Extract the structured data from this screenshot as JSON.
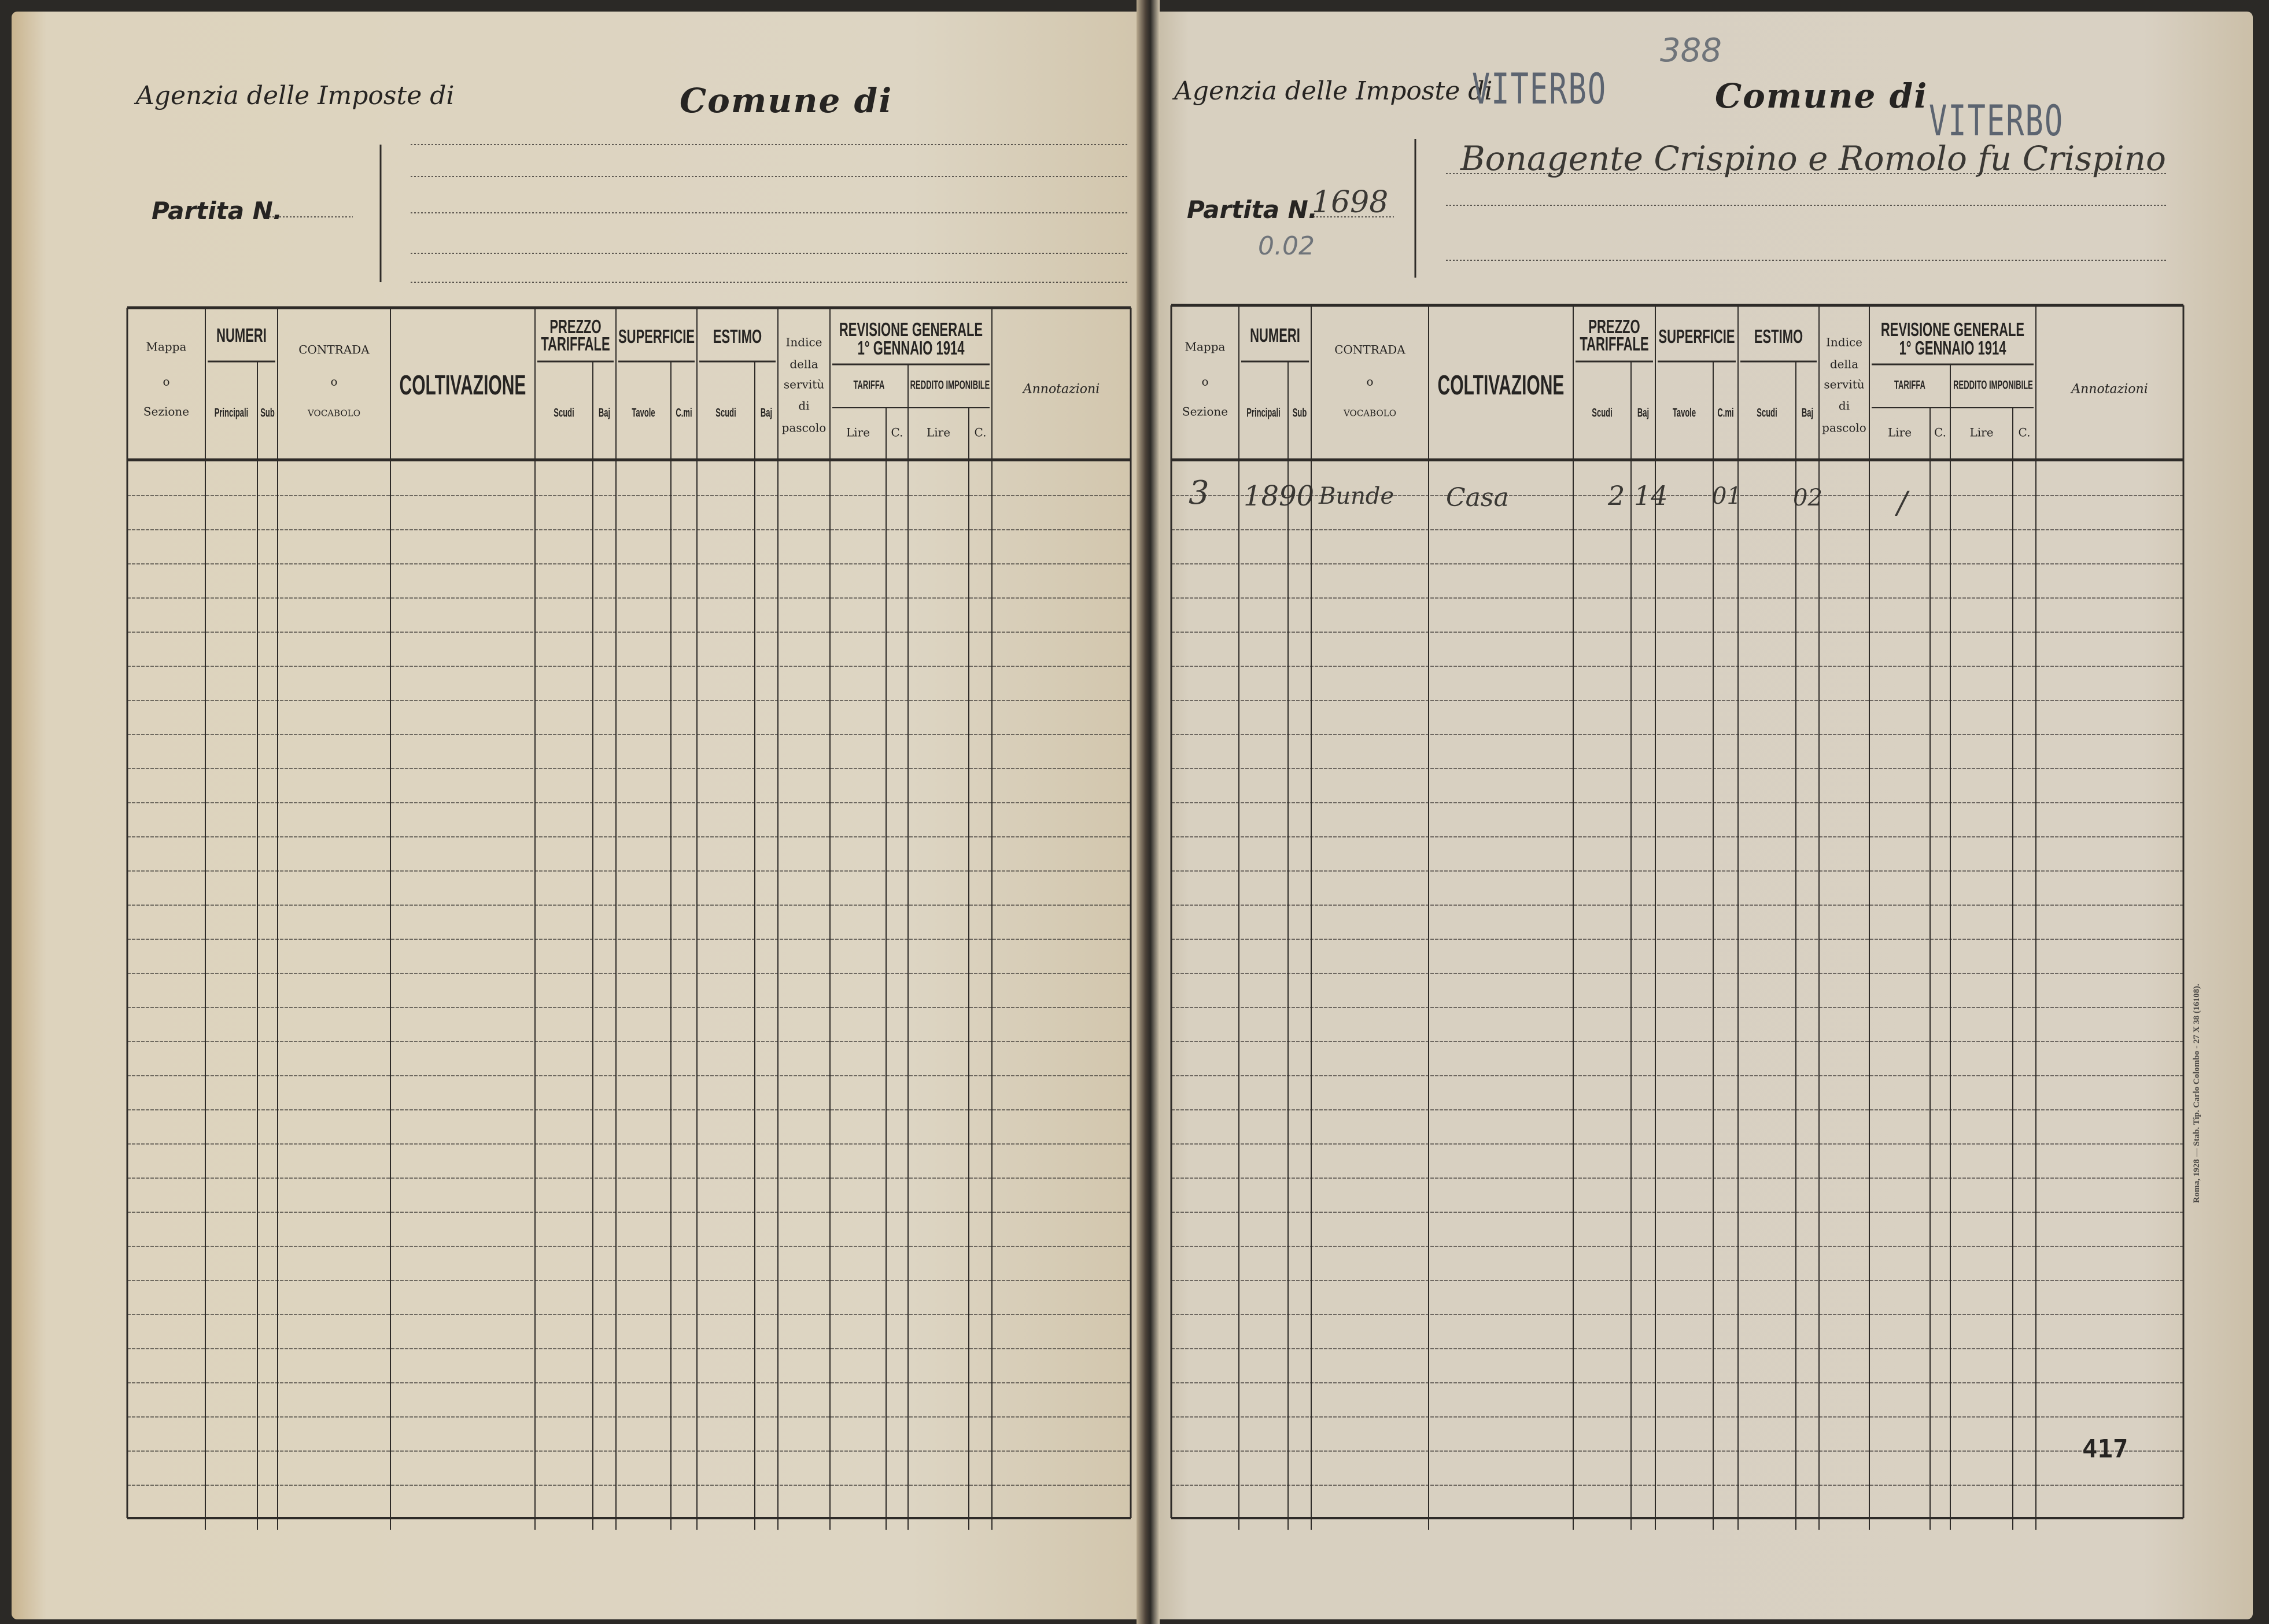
{
  "left_page": {
    "agency_label": "Agenzia delle Imposte di",
    "comune_label": "Comune di",
    "partita_label": "Partita N."
  },
  "right_page": {
    "agency_label": "Agenzia delle Imposte di",
    "agency_stamp": "VITERBO",
    "pencil_number": "388",
    "comune_label": "Comune di",
    "comune_stamp": "VITERBO",
    "owner_name": "Bonagente Crispino e Romolo fu Crispino",
    "partita_label": "Partita N.",
    "partita_number": "1698",
    "partita_note": "0.02",
    "page_number": "417",
    "printer_note": "Roma, 1928 — Stab. Tip. Carlo Colombo - 27 X 38 (16108).",
    "entries": [
      {
        "mappa_sezione": "3",
        "numeri_principali": "1890",
        "contrada": "Bunde",
        "coltivazione": "Casa",
        "prezzo_scudi": "2",
        "prezzo_baj": "14",
        "superficie_cmi": "01",
        "estimo_baj": "02",
        "tariffa_mark": "/"
      }
    ]
  },
  "table_header": {
    "mappa": "Mappa",
    "mappa_o": "o",
    "sezione": "Sezione",
    "numeri": "NUMERI",
    "principali": "Principali",
    "sub": "Sub",
    "contrada": "CONTRADA",
    "contrada_o": "o",
    "vocabolo": "VOCABOLO",
    "coltivazione": "COLTIVAZIONE",
    "prezzo": "PREZZO",
    "tariffale": "TARIFFALE",
    "scudi": "Scudi",
    "baj": "Baj",
    "superficie": "SUPERFICIE",
    "tavole": "Tavole",
    "cmi": "C.mi",
    "estimo": "ESTIMO",
    "estimo_scudi": "Scudi",
    "estimo_baj": "Baj",
    "indice": "Indice",
    "della": "della",
    "servitu": "servitù",
    "di": "di",
    "pascolo": "pascolo",
    "revisione": "REVISIONE GENERALE",
    "revisione_date": "1° GENNAIO 1914",
    "tariffa": "TARIFFA",
    "reddito": "REDDITO IMPONIBILE",
    "lire": "Lire",
    "c": "C.",
    "lire2": "Lire",
    "c2": "C.",
    "annotazioni": "Annotazioni"
  },
  "colors": {
    "paper": "#d9d1c3",
    "ink": "#262422",
    "pencil": "#6f747a",
    "stamp": "#5c6470"
  }
}
